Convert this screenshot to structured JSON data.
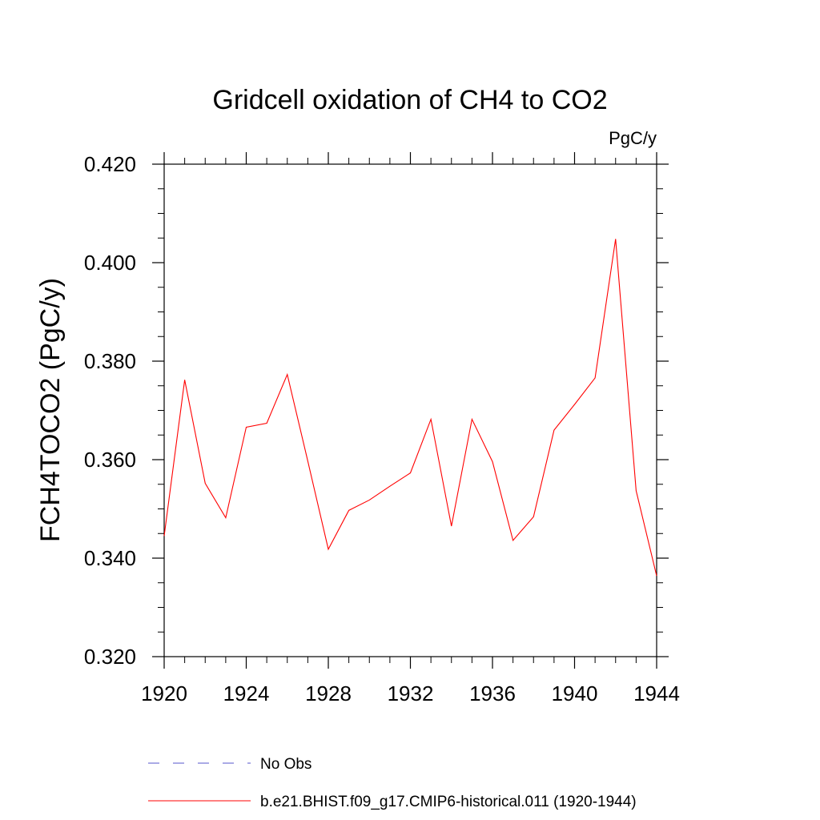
{
  "chart_data": {
    "type": "line",
    "title": "Gridcell oxidation of CH4 to CO2",
    "units": "PgC/y",
    "xlabel": "",
    "ylabel": "FCH4TOCO2  (PgC/y)",
    "xlim": [
      1920,
      1944
    ],
    "ylim": [
      0.32,
      0.42
    ],
    "x_ticks": [
      1920,
      1924,
      1928,
      1932,
      1936,
      1940,
      1944
    ],
    "x_tick_labels": [
      "1920",
      "1924",
      "1928",
      "1932",
      "1936",
      "1940",
      "1944"
    ],
    "y_ticks": [
      0.32,
      0.34,
      0.36,
      0.38,
      0.4,
      0.42
    ],
    "y_tick_labels": [
      "0.320",
      "0.340",
      "0.360",
      "0.380",
      "0.400",
      "0.420"
    ],
    "series": [
      {
        "name": "b.e21.BHIST.f09_g17.CMIP6-historical.011 (1920-1944)",
        "color": "#ff0000",
        "x": [
          1920,
          1921,
          1922,
          1923,
          1924,
          1925,
          1926,
          1927,
          1928,
          1929,
          1930,
          1931,
          1932,
          1933,
          1934,
          1935,
          1936,
          1937,
          1938,
          1939,
          1940,
          1941,
          1942,
          1943,
          1944
        ],
        "values": [
          0.3445,
          0.3762,
          0.3552,
          0.3482,
          0.3666,
          0.3674,
          0.3773,
          0.3597,
          0.3418,
          0.3497,
          0.3518,
          0.3546,
          0.3573,
          0.3682,
          0.3465,
          0.3682,
          0.3596,
          0.3436,
          0.3484,
          0.366,
          0.3712,
          0.3766,
          0.4048,
          0.3537,
          0.3364
        ]
      }
    ],
    "legend": [
      {
        "label": "No Obs",
        "color": "#5555cc",
        "style": "dashed"
      },
      {
        "label": "b.e21.BHIST.f09_g17.CMIP6-historical.011 (1920-1944)",
        "color": "#ff0000",
        "style": "solid"
      }
    ],
    "grid": false
  }
}
